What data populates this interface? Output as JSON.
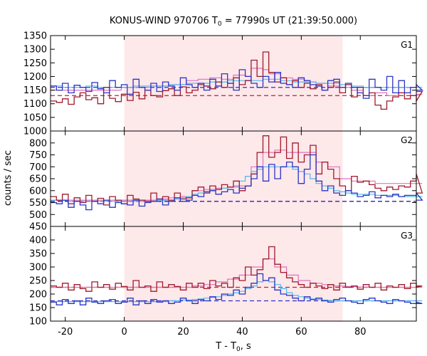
{
  "chart_data": {
    "type": "line",
    "title": "KONUS-WIND 970706 T",
    "title_sub": "0",
    "title_rest": " = 77990s UT (21:39:50.000)",
    "xlabel": "T - T",
    "xlabel_sub": "0",
    "xlabel_rest": ", s",
    "ylabel": "counts / sec",
    "xlim": [
      -25,
      99
    ],
    "xticks": [
      -20,
      0,
      20,
      40,
      60,
      80
    ],
    "shaded_interval": [
      0,
      74
    ],
    "bin_width": 2,
    "bin_start": -25,
    "colors": {
      "raw_a": "#a01a2a",
      "raw_b": "#2b35c4",
      "smooth_a": "#e070c0",
      "smooth_b": "#50b8ee",
      "bg_a": "#c02030",
      "bg_b": "#3030c0",
      "shade": "#fde8ea"
    },
    "panels": [
      {
        "label": "G1",
        "ylim": [
          1000,
          1350
        ],
        "yticks": [
          1000,
          1050,
          1100,
          1150,
          1200,
          1250,
          1300,
          1350
        ],
        "background_a": 1130,
        "background_b": 1160,
        "series": [
          {
            "values": [
              1110,
              1105,
              1118,
              1098,
              1125,
              1140,
              1115,
              1122,
              1100,
              1160,
              1120,
              1108,
              1135,
              1112,
              1142,
              1118,
              1150,
              1130,
              1125,
              1148,
              1155,
              1130,
              1162,
              1140,
              1150,
              1170,
              1165,
              1155,
              1180,
              1160,
              1175,
              1195,
              1170,
              1185,
              1260,
              1200,
              1290,
              1215,
              1180,
              1195,
              1170,
              1185,
              1160,
              1175,
              1155,
              1170,
              1150,
              1160,
              1180,
              1140,
              1170,
              1125,
              1160,
              1130,
              1140,
              1095,
              1080,
              1110,
              1125,
              1140,
              1118,
              1130,
              1110,
              1145
            ]
          },
          {
            "values": [
              1165,
              1150,
              1175,
              1140,
              1168,
              1160,
              1145,
              1178,
              1155,
              1140,
              1185,
              1160,
              1170,
              1135,
              1190,
              1160,
              1150,
              1175,
              1145,
              1180,
              1165,
              1150,
              1195,
              1170,
              1160,
              1175,
              1150,
              1190,
              1165,
              1210,
              1175,
              1150,
              1225,
              1200,
              1175,
              1160,
              1200,
              1180,
              1215,
              1175,
              1170,
              1160,
              1195,
              1185,
              1170,
              1165,
              1150,
              1185,
              1190,
              1160,
              1175,
              1160,
              1140,
              1120,
              1190,
              1160,
              1150,
              1200,
              1140,
              1185,
              1140,
              1160,
              1170,
              1150
            ]
          },
          {
            "values": [
              1150,
              1150,
              1150,
              1150,
              1150,
              1150,
              1150,
              1150,
              1150,
              1150,
              1150,
              1150,
              1160,
              1160,
              1160,
              1160,
              1160,
              1165,
              1165,
              1165,
              1170,
              1170,
              1170,
              1185,
              1185,
              1190,
              1190,
              1195,
              1195,
              1190,
              1190,
              1205,
              1205,
              1200,
              1230,
              1230,
              1225,
              1210,
              1210,
              1195,
              1195,
              1190,
              1190,
              1180,
              1180,
              1175,
              1175,
              1165,
              1165,
              1160,
              1160,
              1150,
              1150,
              1130,
              1130,
              1140,
              1140,
              1130,
              1130,
              1140,
              1140,
              1130,
              1130,
              1135
            ]
          },
          {
            "values": [
              1165,
              1165,
              1160,
              1160,
              1160,
              1160,
              1165,
              1165,
              1160,
              1160,
              1160,
              1160,
              1160,
              1160,
              1165,
              1165,
              1165,
              1165,
              1165,
              1165,
              1170,
              1170,
              1170,
              1175,
              1175,
              1175,
              1175,
              1180,
              1180,
              1180,
              1185,
              1185,
              1185,
              1185,
              1185,
              1185,
              1190,
              1190,
              1190,
              1185,
              1185,
              1180,
              1180,
              1180,
              1180,
              1175,
              1175,
              1175,
              1175,
              1170,
              1170,
              1165,
              1165,
              1160,
              1160,
              1160,
              1160,
              1160,
              1160,
              1160,
              1160,
              1160,
              1160,
              1160
            ]
          }
        ]
      },
      {
        "label": "G2",
        "ylim": [
          450,
          850
        ],
        "yticks": [
          450,
          500,
          550,
          600,
          650,
          700,
          750,
          800
        ],
        "background_a": 555,
        "background_b": 555,
        "series": [
          {
            "values": [
              575,
              560,
              585,
              545,
              570,
              550,
              580,
              555,
              568,
              540,
              575,
              560,
              545,
              580,
              565,
              560,
              555,
              590,
              565,
              575,
              560,
              590,
              565,
              570,
              600,
              615,
              595,
              620,
              605,
              625,
              615,
              640,
              600,
              620,
              670,
              760,
              830,
              740,
              760,
              825,
              735,
              800,
              720,
              750,
              790,
              670,
              720,
              690,
              650,
              620,
              600,
              660,
              635,
              640,
              625,
              610,
              600,
              615,
              605,
              620,
              615,
              640,
              670,
              590
            ]
          },
          {
            "values": [
              550,
              545,
              560,
              530,
              555,
              540,
              520,
              555,
              545,
              560,
              530,
              550,
              545,
              540,
              560,
              535,
              550,
              555,
              565,
              540,
              555,
              570,
              555,
              560,
              580,
              575,
              590,
              600,
              585,
              595,
              605,
              590,
              610,
              620,
              650,
              700,
              640,
              710,
              650,
              700,
              720,
              700,
              630,
              690,
              750,
              640,
              600,
              620,
              590,
              580,
              600,
              590,
              575,
              580,
              595,
              570,
              580,
              575,
              585,
              575,
              580,
              580,
              590,
              560
            ]
          },
          {
            "values": [
              560,
              560,
              560,
              560,
              560,
              560,
              560,
              560,
              560,
              560,
              560,
              560,
              560,
              560,
              560,
              560,
              560,
              560,
              565,
              565,
              570,
              570,
              575,
              575,
              600,
              600,
              605,
              605,
              610,
              610,
              615,
              615,
              620,
              620,
              700,
              700,
              760,
              760,
              770,
              770,
              760,
              760,
              760,
              760,
              760,
              720,
              720,
              700,
              700,
              650,
              650,
              640,
              640,
              640,
              640,
              630,
              630,
              630,
              630,
              630,
              630,
              630,
              630,
              630
            ]
          },
          {
            "values": [
              560,
              560,
              560,
              555,
              555,
              555,
              555,
              555,
              555,
              555,
              555,
              555,
              555,
              555,
              555,
              555,
              555,
              555,
              560,
              560,
              560,
              565,
              570,
              575,
              585,
              590,
              595,
              600,
              605,
              610,
              615,
              620,
              640,
              660,
              680,
              690,
              700,
              700,
              700,
              700,
              700,
              690,
              680,
              670,
              650,
              630,
              620,
              610,
              600,
              595,
              590,
              585,
              585,
              585,
              585,
              580,
              580,
              580,
              580,
              575,
              575,
              575,
              575,
              575
            ]
          }
        ]
      },
      {
        "label": "G3",
        "ylim": [
          100,
          450
        ],
        "yticks": [
          100,
          150,
          200,
          250,
          300,
          350,
          400
        ],
        "background_a": 225,
        "background_b": 175,
        "series": [
          {
            "values": [
              230,
              225,
              240,
              215,
              235,
              220,
              210,
              245,
              225,
              235,
              218,
              240,
              228,
              215,
              250,
              225,
              230,
              210,
              245,
              225,
              235,
              228,
              215,
              240,
              225,
              240,
              220,
              250,
              230,
              240,
              225,
              260,
              250,
              300,
              270,
              290,
              330,
              375,
              310,
              280,
              260,
              245,
              235,
              225,
              240,
              230,
              220,
              235,
              215,
              240,
              225,
              230,
              218,
              235,
              225,
              240,
              215,
              230,
              225,
              235,
              220,
              240,
              225,
              230
            ]
          },
          {
            "values": [
              170,
              160,
              180,
              165,
              175,
              160,
              185,
              170,
              165,
              175,
              180,
              165,
              170,
              185,
              160,
              175,
              165,
              180,
              170,
              175,
              165,
              170,
              185,
              175,
              165,
              180,
              175,
              190,
              180,
              200,
              195,
              215,
              200,
              225,
              240,
              275,
              250,
              260,
              215,
              200,
              195,
              185,
              175,
              190,
              180,
              185,
              175,
              170,
              180,
              185,
              175,
              170,
              165,
              180,
              185,
              175,
              170,
              165,
              180,
              175,
              170,
              165,
              170,
              165
            ]
          },
          {
            "values": [
              225,
              225,
              225,
              225,
              225,
              225,
              225,
              225,
              225,
              225,
              225,
              225,
              225,
              225,
              225,
              225,
              225,
              225,
              225,
              225,
              225,
              225,
              225,
              225,
              230,
              230,
              235,
              235,
              245,
              245,
              255,
              255,
              270,
              270,
              300,
              300,
              330,
              330,
              300,
              300,
              270,
              270,
              250,
              250,
              240,
              240,
              235,
              235,
              230,
              230,
              228,
              228,
              226,
              226,
              225,
              225,
              225,
              225,
              225,
              225,
              225,
              225,
              225,
              225
            ]
          },
          {
            "values": [
              172,
              172,
              172,
              172,
              172,
              172,
              172,
              172,
              172,
              172,
              172,
              172,
              172,
              172,
              172,
              172,
              172,
              172,
              172,
              172,
              175,
              175,
              178,
              178,
              180,
              182,
              185,
              188,
              190,
              195,
              200,
              205,
              210,
              220,
              230,
              245,
              250,
              245,
              235,
              220,
              205,
              195,
              190,
              185,
              182,
              180,
              178,
              176,
              175,
              175,
              175,
              175,
              175,
              175,
              175,
              175,
              175,
              175,
              175,
              175,
              175,
              175,
              175,
              175
            ]
          }
        ]
      }
    ]
  }
}
